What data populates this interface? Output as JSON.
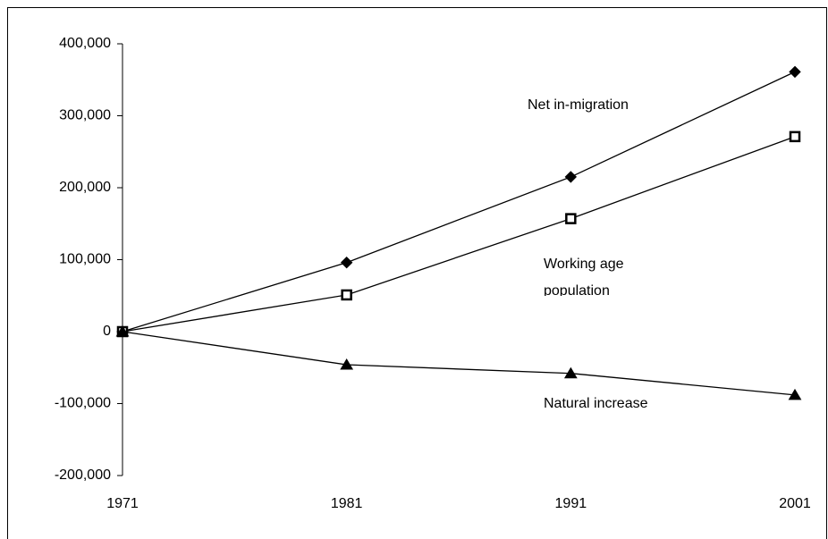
{
  "chart_data": {
    "type": "line",
    "x": [
      1971,
      1981,
      1991,
      2001
    ],
    "xlim": [
      1971,
      2001
    ],
    "xticks": [
      1971,
      1981,
      1991,
      2001
    ],
    "ylim": [
      -200000,
      400000
    ],
    "yticks": [
      {
        "value": -200000,
        "label": "-200,000"
      },
      {
        "value": -100000,
        "label": "-100,000"
      },
      0,
      {
        "value": 100000,
        "label": "100,000"
      },
      {
        "value": 200000,
        "label": "200,000"
      },
      {
        "value": 300000,
        "label": "300,000"
      },
      {
        "value": 400000,
        "label": "400,000"
      }
    ],
    "series": [
      {
        "name": "Net in-migration",
        "color": "#000000",
        "marker": "diamond",
        "values": [
          0,
          96000,
          215000,
          361000
        ]
      },
      {
        "name": "Working age population",
        "color": "#000000",
        "marker": "square",
        "values": [
          0,
          51000,
          157000,
          271000
        ]
      },
      {
        "name": "Natural increase",
        "color": "#000000",
        "marker": "triangle",
        "values": [
          0,
          -46000,
          -58000,
          -88000
        ]
      }
    ]
  }
}
